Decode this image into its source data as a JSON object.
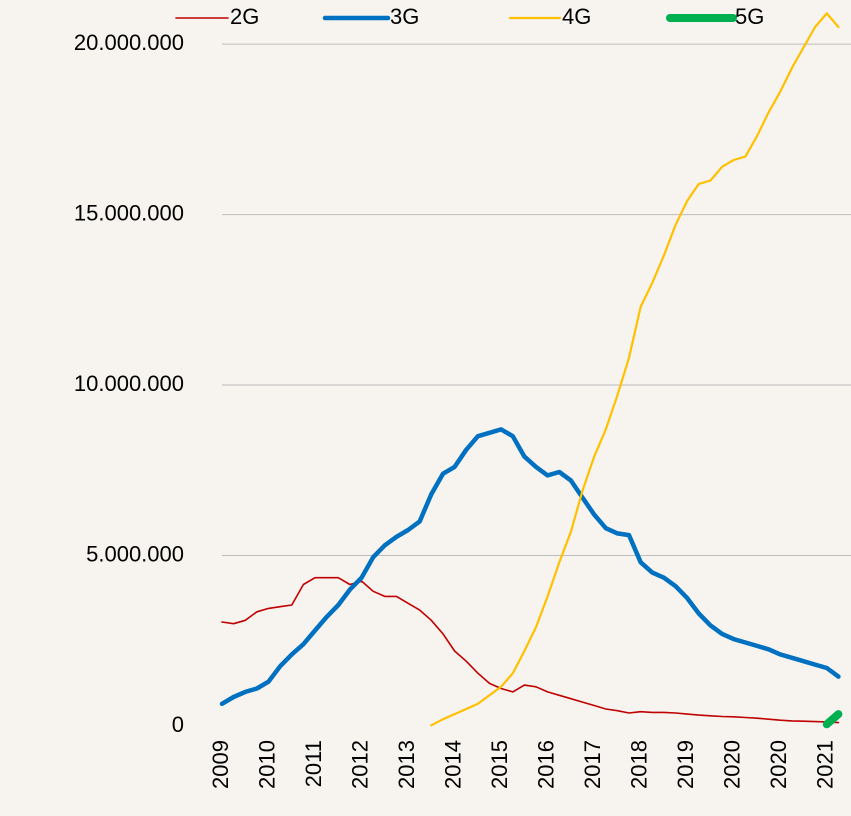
{
  "chart_data": {
    "type": "line",
    "categories": [
      "2009",
      null,
      null,
      null,
      "2010",
      null,
      null,
      null,
      "2011",
      null,
      null,
      null,
      "2012",
      null,
      null,
      null,
      "2013",
      null,
      null,
      null,
      "2014",
      null,
      null,
      null,
      "2015",
      null,
      null,
      null,
      "2016",
      null,
      null,
      null,
      "2017",
      null,
      null,
      null,
      "2018",
      null,
      null,
      null,
      "2019",
      null,
      null,
      null,
      "2020",
      null,
      null,
      null,
      "2020",
      null,
      null,
      null,
      "2021",
      null
    ],
    "series": [
      {
        "name": "2G",
        "color": "#c00000",
        "width": 1.6,
        "values": [
          3050000,
          3000000,
          3100000,
          3350000,
          3450000,
          3500000,
          3550000,
          4150000,
          4350000,
          4350000,
          4350000,
          4150000,
          4250000,
          3950000,
          3800000,
          3800000,
          3600000,
          3400000,
          3100000,
          2700000,
          2200000,
          1900000,
          1550000,
          1250000,
          1100000,
          1000000,
          1200000,
          1150000,
          1000000,
          900000,
          800000,
          700000,
          600000,
          500000,
          450000,
          380000,
          420000,
          400000,
          400000,
          380000,
          350000,
          320000,
          300000,
          280000,
          270000,
          250000,
          230000,
          200000,
          170000,
          150000,
          140000,
          130000,
          120000,
          100000
        ]
      },
      {
        "name": "3G",
        "color": "#0070c0",
        "width": 4.5,
        "values": [
          650000,
          850000,
          1000000,
          1100000,
          1300000,
          1750000,
          2100000,
          2400000,
          2800000,
          3200000,
          3550000,
          4000000,
          4350000,
          4950000,
          5300000,
          5550000,
          5750000,
          6000000,
          6800000,
          7400000,
          7600000,
          8100000,
          8500000,
          8600000,
          8700000,
          8500000,
          7900000,
          7600000,
          7350000,
          7450000,
          7200000,
          6700000,
          6200000,
          5800000,
          5650000,
          5600000,
          4800000,
          4500000,
          4350000,
          4100000,
          3750000,
          3300000,
          2950000,
          2700000,
          2550000,
          2450000,
          2350000,
          2250000,
          2100000,
          2000000,
          1900000,
          1800000,
          1700000,
          1450000
        ]
      },
      {
        "name": "4G",
        "color": "#ffc000",
        "width": 2.2,
        "values": [
          null,
          null,
          null,
          null,
          null,
          null,
          null,
          null,
          null,
          null,
          null,
          null,
          null,
          null,
          null,
          null,
          null,
          null,
          20000,
          200000,
          350000,
          500000,
          650000,
          900000,
          1150000,
          1550000,
          2200000,
          2900000,
          3800000,
          4800000,
          5700000,
          6900000,
          7900000,
          8700000,
          9700000,
          10800000,
          12300000,
          13000000,
          13800000,
          14700000,
          15400000,
          15900000,
          16000000,
          16400000,
          16600000,
          16700000,
          17300000,
          18000000,
          18600000,
          19300000,
          19900000,
          20500000,
          20900000,
          20500000
        ]
      },
      {
        "name": "5G",
        "color": "#00b050",
        "width": 8,
        "values": [
          null,
          null,
          null,
          null,
          null,
          null,
          null,
          null,
          null,
          null,
          null,
          null,
          null,
          null,
          null,
          null,
          null,
          null,
          null,
          null,
          null,
          null,
          null,
          null,
          null,
          null,
          null,
          null,
          null,
          null,
          null,
          null,
          null,
          null,
          null,
          null,
          null,
          null,
          null,
          null,
          null,
          null,
          null,
          null,
          null,
          null,
          null,
          null,
          null,
          null,
          null,
          null,
          50000,
          350000
        ]
      }
    ],
    "ylim": [
      0,
      21000000
    ],
    "yticks": [
      0,
      {
        "value": 5000000,
        "label": "5.000.000"
      },
      {
        "value": 10000000,
        "label": "10.000.000"
      },
      {
        "value": 15000000,
        "label": "15.000.000"
      },
      {
        "value": 20000000,
        "label": "20.000.000"
      }
    ],
    "grid": true
  }
}
